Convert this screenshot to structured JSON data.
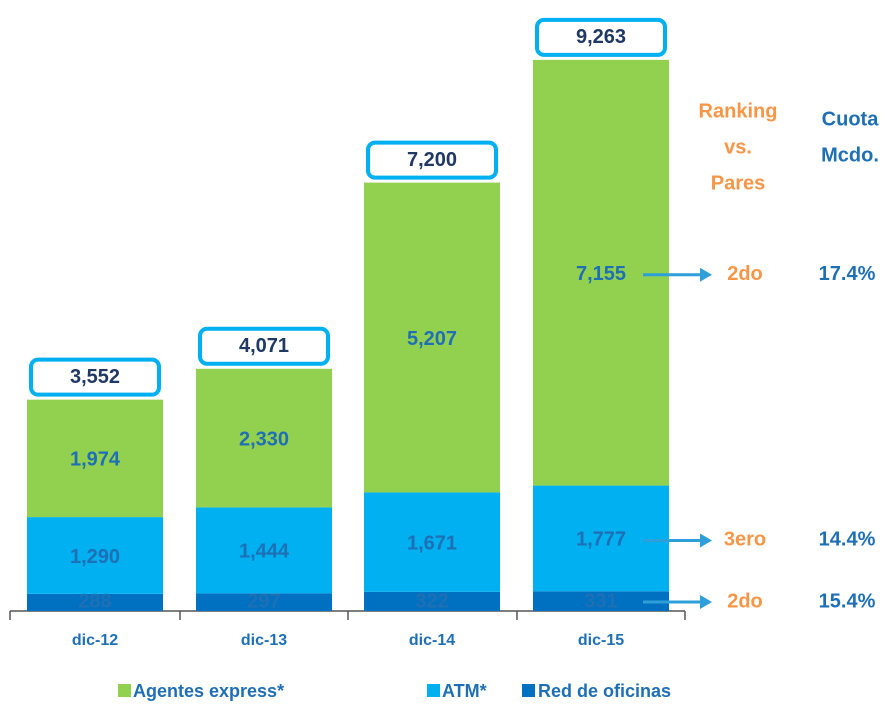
{
  "chart_data": {
    "type": "bar",
    "stacked": true,
    "categories": [
      "dic-12",
      "dic-13",
      "dic-14",
      "dic-15"
    ],
    "series": [
      {
        "name": "Agentes express*",
        "color": "#92d050",
        "values": [
          1974,
          2330,
          5207,
          7155
        ],
        "value_labels": [
          "1,974",
          "2,330",
          "5,207",
          "7,155"
        ],
        "ranking": "2do",
        "share": "17.4%"
      },
      {
        "name": "ATM*",
        "color": "#00b0f0",
        "values": [
          1290,
          1444,
          1671,
          1777
        ],
        "value_labels": [
          "1,290",
          "1,444",
          "1,671",
          "1,777"
        ],
        "ranking": "3ero",
        "share": "14.4%"
      },
      {
        "name": "Red de oficinas",
        "color": "#0070c0",
        "values": [
          288,
          297,
          322,
          331
        ],
        "value_labels": [
          "288",
          "297",
          "322",
          "331"
        ],
        "ranking": "2do",
        "share": "15.4%"
      }
    ],
    "totals": [
      "3,552",
      "4,071",
      "7,200",
      "9,263"
    ],
    "ranking_header": [
      "Ranking",
      "vs.",
      "Pares"
    ],
    "share_header": [
      "Cuota",
      "Mcdo."
    ],
    "ylim": [
      0,
      10000
    ]
  }
}
